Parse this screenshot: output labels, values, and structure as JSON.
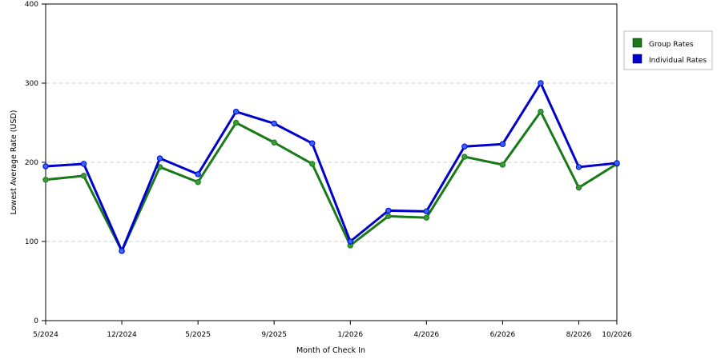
{
  "chart_data": {
    "type": "line",
    "title": "",
    "xlabel": "Month of Check In",
    "ylabel": "Lowest Average Rate (USD)",
    "ylim": [
      0,
      400
    ],
    "yticks": [
      0,
      100,
      200,
      300,
      400
    ],
    "x_tick_labels": [
      "5/2024",
      "12/2024",
      "5/2025",
      "9/2025",
      "1/2026",
      "4/2026",
      "6/2026",
      "8/2026",
      "10/2026"
    ],
    "x_tick_index": [
      0,
      2,
      4,
      6,
      8,
      10,
      12,
      14,
      15
    ],
    "grid": "horizontal dashed",
    "legend_position": "right",
    "series": [
      {
        "name": "Group Rates",
        "color": "#1a7a1a",
        "marker_color": "#3a9a3a",
        "values": [
          178,
          183,
          88,
          194,
          175,
          250,
          225,
          198,
          95,
          132,
          130,
          207,
          197,
          264,
          168,
          198
        ]
      },
      {
        "name": "Individual Rates",
        "color": "#0000cc",
        "marker_color": "#3366ff",
        "values": [
          195,
          198,
          88,
          205,
          185,
          264,
          249,
          224,
          100,
          139,
          138,
          220,
          223,
          300,
          194,
          199
        ]
      }
    ]
  }
}
